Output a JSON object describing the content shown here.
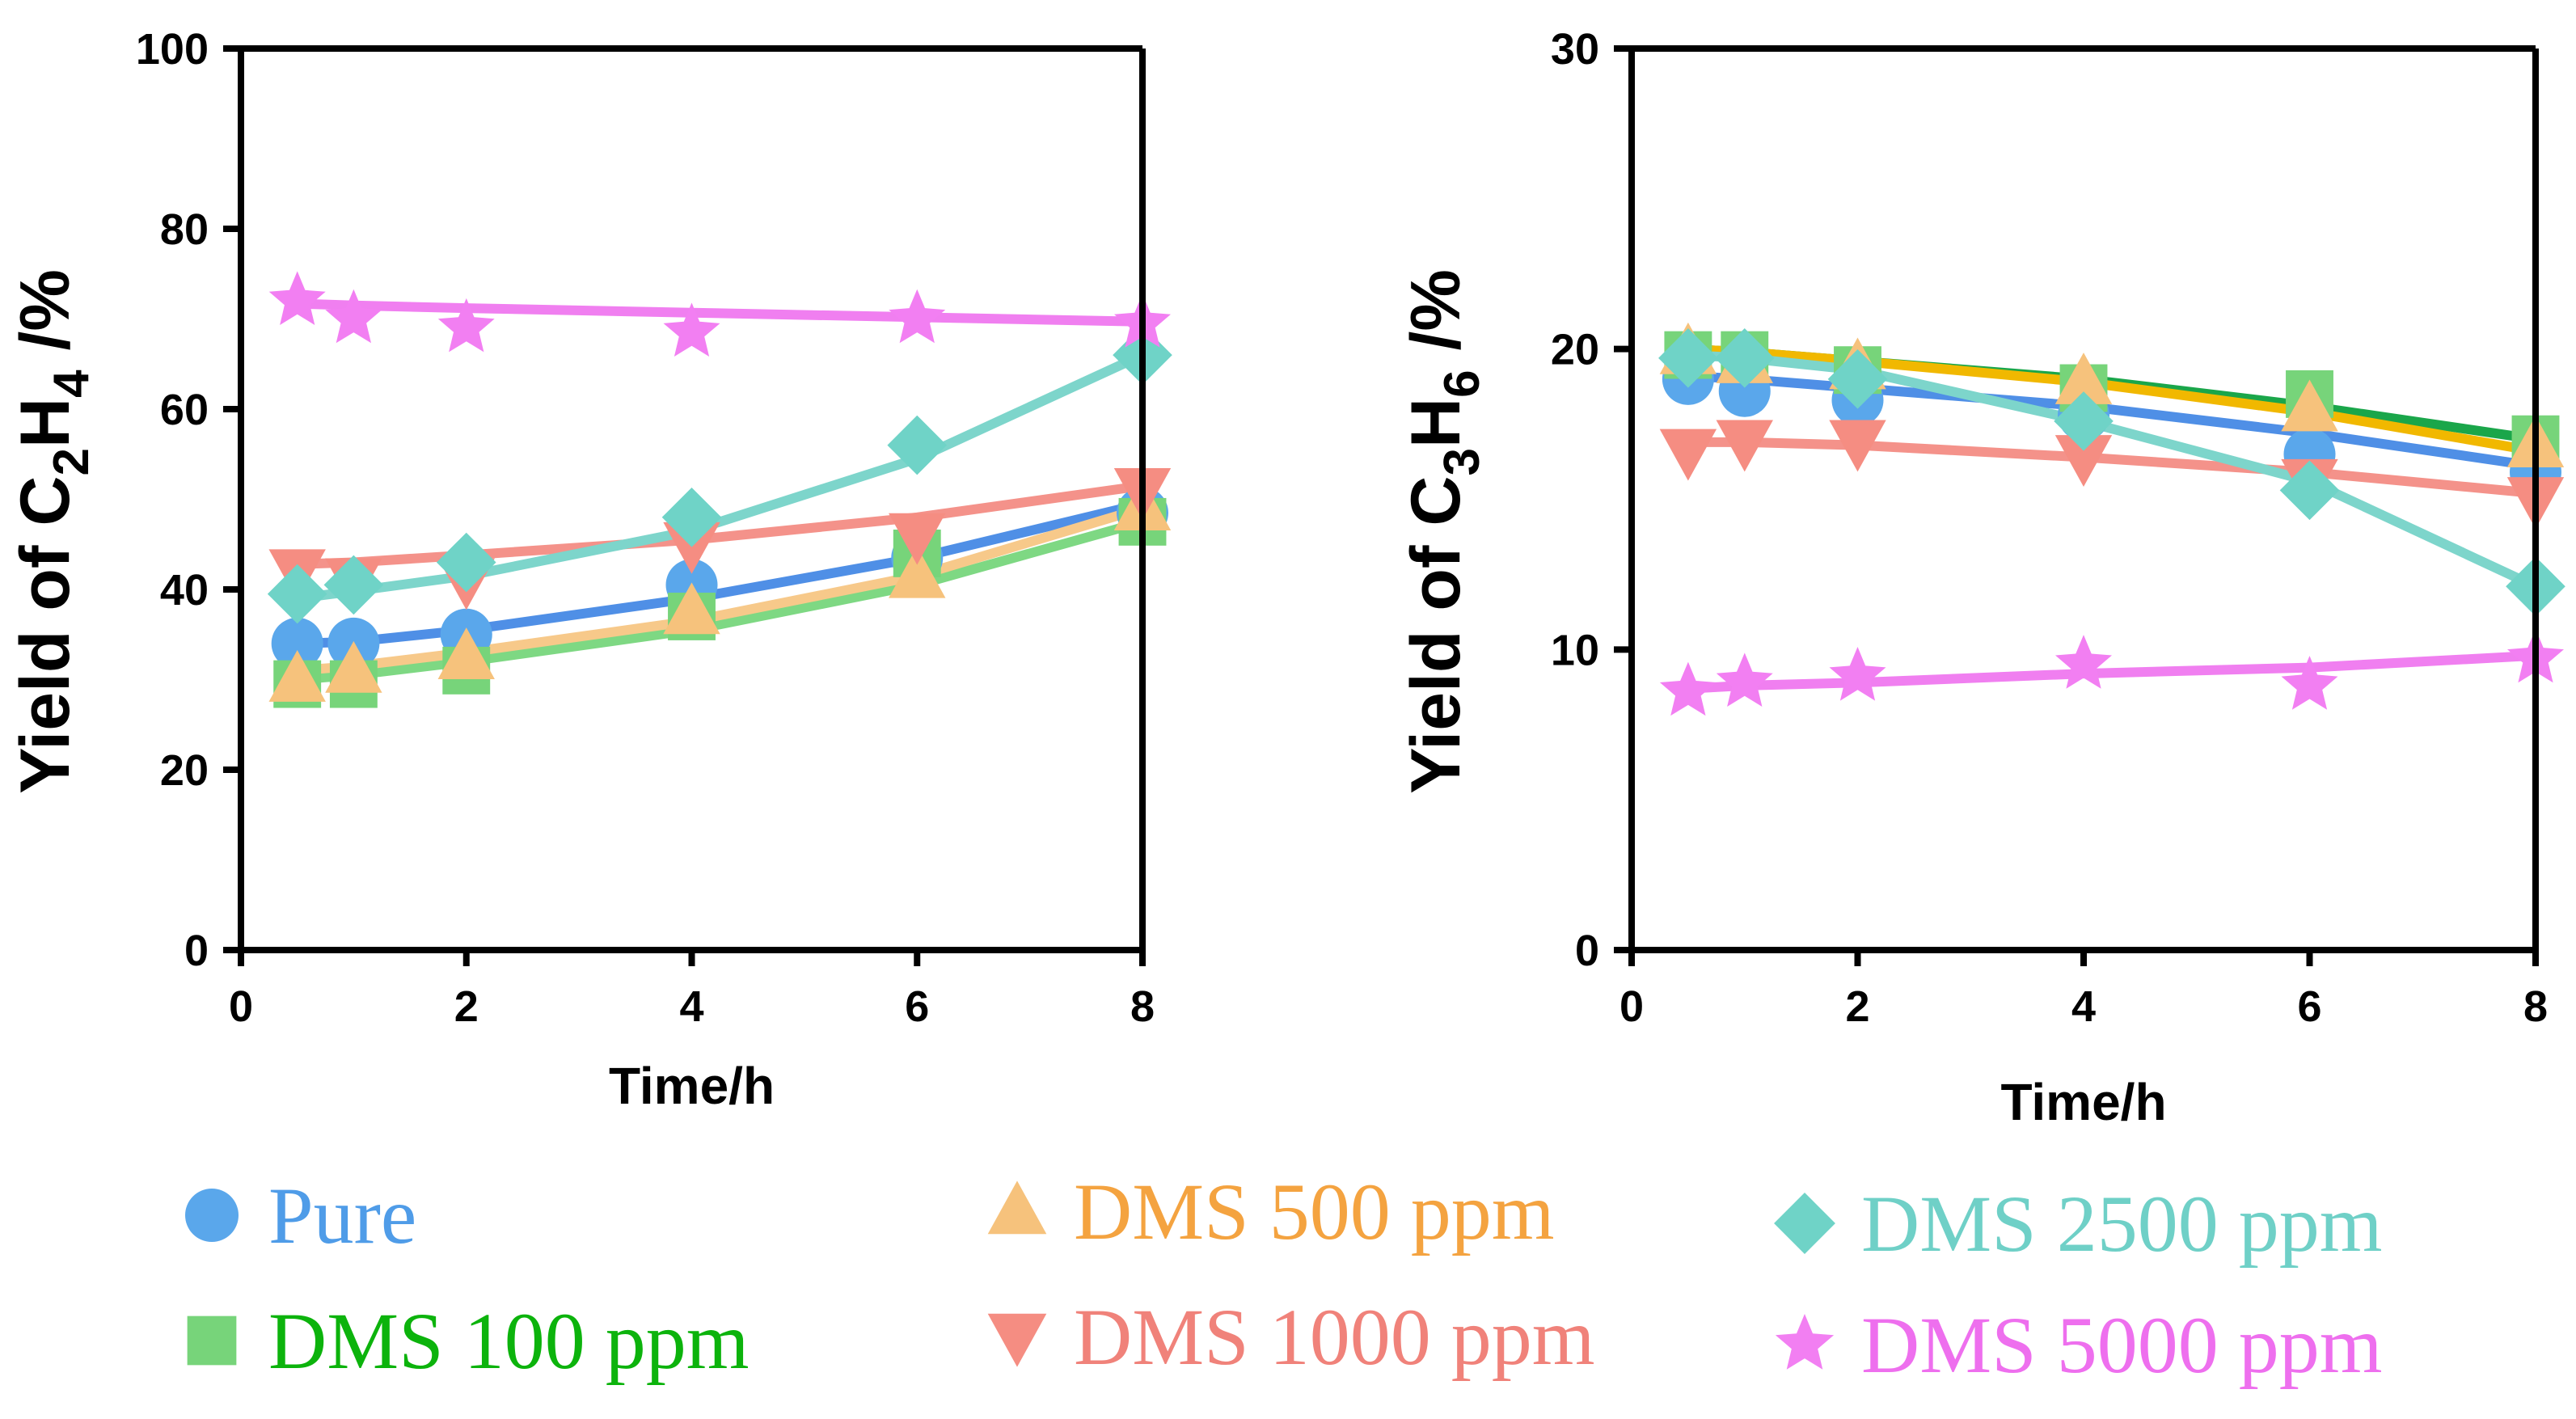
{
  "chart_data": [
    {
      "type": "line",
      "xlabel": "Time/h",
      "ylabel": {
        "prefix": "Yield of C",
        "sub1": "2",
        "mid": "H",
        "sub2": "4",
        "suffix": " /%"
      },
      "xlim": [
        0,
        8
      ],
      "ylim": [
        0,
        100
      ],
      "xticks": [
        "0",
        "2",
        "4",
        "6",
        "8"
      ],
      "yticks": [
        "0",
        "20",
        "40",
        "60",
        "80",
        "100"
      ],
      "x": [
        0.5,
        1,
        2,
        4,
        6,
        8
      ],
      "series": [
        {
          "name": "Pure",
          "values": [
            34,
            34,
            35,
            40.5,
            43.5,
            48.5
          ],
          "fit": [
            34,
            34.2,
            35.5,
            39,
            43.5,
            49.5
          ]
        },
        {
          "name": "DMS 100 ppm",
          "values": [
            29.5,
            29.5,
            31,
            37,
            44,
            47.5
          ],
          "fit": [
            30,
            30.5,
            32,
            35.5,
            40.5,
            47.5
          ]
        },
        {
          "name": "DMS 500 ppm",
          "values": [
            30,
            31,
            32.5,
            37.5,
            41.5,
            49
          ],
          "fit": [
            31,
            31.5,
            33,
            36.5,
            41.5,
            49
          ]
        },
        {
          "name": "DMS 1000 ppm",
          "values": [
            42,
            41,
            41,
            45,
            46,
            51
          ],
          "fit": [
            42.8,
            43,
            43.8,
            45.5,
            48,
            51.5
          ]
        },
        {
          "name": "DMS 2500 ppm",
          "values": [
            39.5,
            40.5,
            43,
            48,
            56,
            66
          ],
          "fit": [
            39,
            39.8,
            41.5,
            46.5,
            54.5,
            66
          ]
        },
        {
          "name": "DMS 5000 ppm",
          "values": [
            72,
            70,
            69,
            68.5,
            70,
            69.5
          ],
          "fit": [
            71.7,
            71.5,
            71.2,
            70.7,
            70.2,
            69.7
          ]
        }
      ]
    },
    {
      "type": "line",
      "xlabel": "Time/h",
      "ylabel": {
        "prefix": "Yield of C",
        "sub1": "3",
        "mid": "H",
        "sub2": "6",
        "suffix": " /%"
      },
      "xlim": [
        0,
        8
      ],
      "ylim": [
        0,
        30
      ],
      "xticks": [
        "0",
        "2",
        "4",
        "6",
        "8"
      ],
      "yticks": [
        "0",
        "10",
        "20",
        "30"
      ],
      "x": [
        0.5,
        1,
        2,
        4,
        6,
        8
      ],
      "series": [
        {
          "name": "Pure",
          "values": [
            19,
            18.6,
            18.3,
            17.8,
            16.5,
            15.9
          ],
          "fit": [
            19.1,
            19,
            18.7,
            18.1,
            17.2,
            16.1
          ]
        },
        {
          "name": "DMS 100 ppm",
          "values": [
            19.8,
            19.8,
            19.3,
            18.7,
            18.5,
            17
          ],
          "fit": [
            20,
            19.9,
            19.6,
            19,
            18.1,
            17
          ]
        },
        {
          "name": "DMS 500 ppm",
          "values": [
            19.9,
            19.6,
            19.4,
            18.9,
            18,
            16.8
          ],
          "fit": [
            20,
            19.9,
            19.6,
            18.9,
            17.9,
            16.6
          ]
        },
        {
          "name": "DMS 1000 ppm",
          "values": [
            16.6,
            16.9,
            16.9,
            16.4,
            15.6,
            15
          ],
          "fit": [
            16.9,
            16.9,
            16.8,
            16.4,
            15.9,
            15.2
          ]
        },
        {
          "name": "DMS 2500 ppm",
          "values": [
            19.7,
            19.7,
            19,
            17.6,
            15.3,
            12.1
          ],
          "fit": [
            19.8,
            19.7,
            19.3,
            17.6,
            15.6,
            12.1
          ]
        },
        {
          "name": "DMS 5000 ppm",
          "values": [
            8.6,
            8.9,
            9.1,
            9.5,
            8.8,
            9.7
          ],
          "fit": [
            8.7,
            8.8,
            8.9,
            9.2,
            9.4,
            9.8
          ]
        }
      ]
    }
  ],
  "legend": {
    "position": "bottom",
    "items": [
      {
        "name": "Pure",
        "marker": "circle",
        "marker_color": "#5aa7eb",
        "text_color": "#4f9ce8",
        "line_color": "#4f8fe6"
      },
      {
        "name": "DMS 100 ppm",
        "marker": "square",
        "marker_color": "#77d47a",
        "text_color": "#0cb30c",
        "line_color": "#7ed883"
      },
      {
        "name": "DMS 500 ppm",
        "marker": "triangle-up",
        "marker_color": "#f6c27c",
        "text_color": "#f4a340",
        "line_color": "#f7c98a"
      },
      {
        "name": "DMS 1000 ppm",
        "marker": "triangle-down",
        "marker_color": "#f58d82",
        "text_color": "#f0827a",
        "line_color": "#f4928a"
      },
      {
        "name": "DMS 2500 ppm",
        "marker": "diamond",
        "marker_color": "#6fd3c7",
        "text_color": "#6fd0c7",
        "line_color": "#7dd5cb"
      },
      {
        "name": "DMS 5000 ppm",
        "marker": "star",
        "marker_color": "#f27ff2",
        "text_color": "#ee6fee",
        "line_color": "#f07ff0"
      }
    ]
  },
  "right_panel_extra_lines": [
    {
      "name": "DMS 100 ppm",
      "line_color": "#1aa64a"
    },
    {
      "name": "DMS 500 ppm",
      "line_color": "#f1b800"
    }
  ]
}
